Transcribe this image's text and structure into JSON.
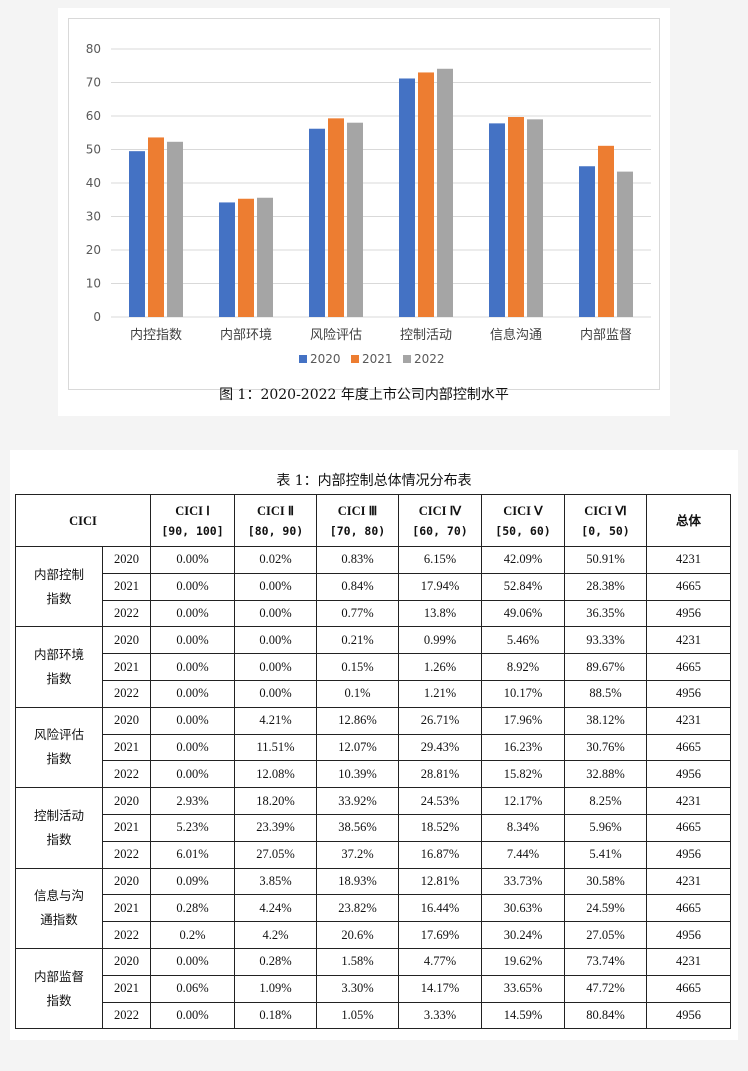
{
  "figure": {
    "caption": "图 1：2020-2022 年度上市公司内部控制水平"
  },
  "chart_data": {
    "type": "bar",
    "title": "",
    "categories": [
      "内控指数",
      "内部环境",
      "风险评估",
      "控制活动",
      "信息沟通",
      "内部监督"
    ],
    "series": [
      {
        "name": "2020",
        "values": [
          49.5,
          34.2,
          56.2,
          71.2,
          57.8,
          45.0
        ]
      },
      {
        "name": "2021",
        "values": [
          53.6,
          35.3,
          59.3,
          73.0,
          59.7,
          51.1
        ]
      },
      {
        "name": "2022",
        "values": [
          52.3,
          35.6,
          58.0,
          74.1,
          59.0,
          43.4
        ]
      }
    ],
    "series_colors": [
      "#4472c4",
      "#ed7d31",
      "#a5a5a5"
    ],
    "ylim": [
      0,
      80
    ],
    "yticks": [
      0,
      10,
      20,
      30,
      40,
      50,
      60,
      70,
      80
    ],
    "grid": true,
    "legend": "bottom",
    "xlabel": "",
    "ylabel": ""
  },
  "table": {
    "caption": "表 1：内部控制总体情况分布表",
    "header_cici": "CICI",
    "columns": [
      {
        "name": "CICI Ⅰ",
        "range": "[90, 100]"
      },
      {
        "name": "CICI Ⅱ",
        "range": "[80, 90)"
      },
      {
        "name": "CICI Ⅲ",
        "range": "[70, 80)"
      },
      {
        "name": "CICI Ⅳ",
        "range": "[60, 70)"
      },
      {
        "name": "CICI Ⅴ",
        "range": "[50, 60)"
      },
      {
        "name": "CICI Ⅵ",
        "range": "[0, 50)"
      }
    ],
    "total_header": "总体",
    "groups": [
      {
        "label_line1": "内部控制",
        "label_line2": "指数",
        "rows": [
          {
            "year": "2020",
            "values": [
              "0.00%",
              "0.02%",
              "0.83%",
              "6.15%",
              "42.09%",
              "50.91%"
            ],
            "total": "4231"
          },
          {
            "year": "2021",
            "values": [
              "0.00%",
              "0.00%",
              "0.84%",
              "17.94%",
              "52.84%",
              "28.38%"
            ],
            "total": "4665"
          },
          {
            "year": "2022",
            "values": [
              "0.00%",
              "0.00%",
              "0.77%",
              "13.8%",
              "49.06%",
              "36.35%"
            ],
            "total": "4956"
          }
        ]
      },
      {
        "label_line1": "内部环境",
        "label_line2": "指数",
        "rows": [
          {
            "year": "2020",
            "values": [
              "0.00%",
              "0.00%",
              "0.21%",
              "0.99%",
              "5.46%",
              "93.33%"
            ],
            "total": "4231"
          },
          {
            "year": "2021",
            "values": [
              "0.00%",
              "0.00%",
              "0.15%",
              "1.26%",
              "8.92%",
              "89.67%"
            ],
            "total": "4665"
          },
          {
            "year": "2022",
            "values": [
              "0.00%",
              "0.00%",
              "0.1%",
              "1.21%",
              "10.17%",
              "88.5%"
            ],
            "total": "4956"
          }
        ]
      },
      {
        "label_line1": "风险评估",
        "label_line2": "指数",
        "rows": [
          {
            "year": "2020",
            "values": [
              "0.00%",
              "4.21%",
              "12.86%",
              "26.71%",
              "17.96%",
              "38.12%"
            ],
            "total": "4231"
          },
          {
            "year": "2021",
            "values": [
              "0.00%",
              "11.51%",
              "12.07%",
              "29.43%",
              "16.23%",
              "30.76%"
            ],
            "total": "4665"
          },
          {
            "year": "2022",
            "values": [
              "0.00%",
              "12.08%",
              "10.39%",
              "28.81%",
              "15.82%",
              "32.88%"
            ],
            "total": "4956"
          }
        ]
      },
      {
        "label_line1": "控制活动",
        "label_line2": "指数",
        "rows": [
          {
            "year": "2020",
            "values": [
              "2.93%",
              "18.20%",
              "33.92%",
              "24.53%",
              "12.17%",
              "8.25%"
            ],
            "total": "4231"
          },
          {
            "year": "2021",
            "values": [
              "5.23%",
              "23.39%",
              "38.56%",
              "18.52%",
              "8.34%",
              "5.96%"
            ],
            "total": "4665"
          },
          {
            "year": "2022",
            "values": [
              "6.01%",
              "27.05%",
              "37.2%",
              "16.87%",
              "7.44%",
              "5.41%"
            ],
            "total": "4956"
          }
        ]
      },
      {
        "label_line1": "信息与沟",
        "label_line2": "通指数",
        "rows": [
          {
            "year": "2020",
            "values": [
              "0.09%",
              "3.85%",
              "18.93%",
              "12.81%",
              "33.73%",
              "30.58%"
            ],
            "total": "4231"
          },
          {
            "year": "2021",
            "values": [
              "0.28%",
              "4.24%",
              "23.82%",
              "16.44%",
              "30.63%",
              "24.59%"
            ],
            "total": "4665"
          },
          {
            "year": "2022",
            "values": [
              "0.2%",
              "4.2%",
              "20.6%",
              "17.69%",
              "30.24%",
              "27.05%"
            ],
            "total": "4956"
          }
        ]
      },
      {
        "label_line1": "内部监督",
        "label_line2": "指数",
        "rows": [
          {
            "year": "2020",
            "values": [
              "0.00%",
              "0.28%",
              "1.58%",
              "4.77%",
              "19.62%",
              "73.74%"
            ],
            "total": "4231"
          },
          {
            "year": "2021",
            "values": [
              "0.06%",
              "1.09%",
              "3.30%",
              "14.17%",
              "33.65%",
              "47.72%"
            ],
            "total": "4665"
          },
          {
            "year": "2022",
            "values": [
              "0.00%",
              "0.18%",
              "1.05%",
              "3.33%",
              "14.59%",
              "80.84%"
            ],
            "total": "4956"
          }
        ]
      }
    ]
  }
}
